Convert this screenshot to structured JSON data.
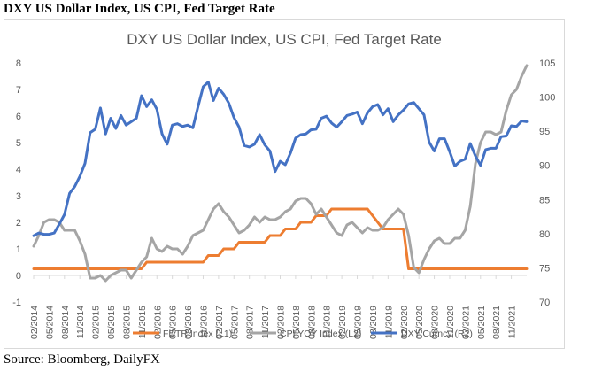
{
  "page": {
    "outer_title": "DXY US Dollar Index, US CPI, Fed Target Rate",
    "source": "Source: Bloomberg, DailyFX"
  },
  "chart_data": {
    "type": "line",
    "title": "DXY US Dollar Index, US CPI, Fed Target Rate",
    "x": [
      "02/2014",
      "03/2014",
      "04/2014",
      "05/2014",
      "06/2014",
      "07/2014",
      "08/2014",
      "09/2014",
      "10/2014",
      "11/2014",
      "12/2014",
      "01/2015",
      "02/2015",
      "03/2015",
      "04/2015",
      "05/2015",
      "06/2015",
      "07/2015",
      "08/2015",
      "09/2015",
      "10/2015",
      "11/2015",
      "12/2015",
      "01/2016",
      "02/2016",
      "03/2016",
      "04/2016",
      "05/2016",
      "06/2016",
      "07/2016",
      "08/2016",
      "09/2016",
      "10/2016",
      "11/2016",
      "12/2016",
      "01/2017",
      "02/2017",
      "03/2017",
      "04/2017",
      "05/2017",
      "06/2017",
      "07/2017",
      "08/2017",
      "09/2017",
      "10/2017",
      "11/2017",
      "12/2017",
      "01/2018",
      "02/2018",
      "03/2018",
      "04/2018",
      "05/2018",
      "06/2018",
      "07/2018",
      "08/2018",
      "09/2018",
      "10/2018",
      "11/2018",
      "12/2018",
      "01/2019",
      "02/2019",
      "03/2019",
      "04/2019",
      "05/2019",
      "06/2019",
      "07/2019",
      "08/2019",
      "09/2019",
      "10/2019",
      "11/2019",
      "12/2019",
      "01/2020",
      "02/2020",
      "03/2020",
      "04/2020",
      "05/2020",
      "06/2020",
      "07/2020",
      "08/2020",
      "09/2020",
      "10/2020",
      "11/2020",
      "12/2020",
      "01/2021",
      "02/2021",
      "03/2021",
      "04/2021",
      "05/2021",
      "06/2021",
      "07/2021",
      "08/2021",
      "09/2021",
      "10/2021",
      "11/2021",
      "12/2021",
      "01/2022",
      "02/2022"
    ],
    "x_tick_labels": [
      "02/2014",
      "05/2014",
      "08/2014",
      "11/2014",
      "02/2015",
      "05/2015",
      "08/2015",
      "11/2015",
      "02/2016",
      "05/2016",
      "08/2016",
      "11/2016",
      "02/2017",
      "05/2017",
      "08/2017",
      "11/2017",
      "02/2018",
      "05/2018",
      "08/2018",
      "11/2018",
      "02/2019",
      "05/2019",
      "08/2019",
      "11/2019",
      "02/2020",
      "05/2020",
      "08/2020",
      "11/2020",
      "02/2021",
      "05/2021",
      "08/2021",
      "11/2021"
    ],
    "y_left": {
      "min": -1,
      "max": 8,
      "ticks": [
        "-1",
        "0",
        "1",
        "2",
        "3",
        "4",
        "5",
        "6",
        "7",
        "8"
      ]
    },
    "y_right": {
      "min": 70,
      "max": 105,
      "ticks": [
        "70",
        "75",
        "80",
        "85",
        "90",
        "95",
        "100",
        "105"
      ]
    },
    "grid": false,
    "legend_position": "bottom",
    "series": [
      {
        "name": "FDTR Index  (L1)",
        "axis": "left",
        "color": "#ed7d31",
        "values": [
          0.25,
          0.25,
          0.25,
          0.25,
          0.25,
          0.25,
          0.25,
          0.25,
          0.25,
          0.25,
          0.25,
          0.25,
          0.25,
          0.25,
          0.25,
          0.25,
          0.25,
          0.25,
          0.25,
          0.25,
          0.25,
          0.25,
          0.5,
          0.5,
          0.5,
          0.5,
          0.5,
          0.5,
          0.5,
          0.5,
          0.5,
          0.5,
          0.5,
          0.5,
          0.75,
          0.75,
          0.75,
          1.0,
          1.0,
          1.0,
          1.25,
          1.25,
          1.25,
          1.25,
          1.25,
          1.25,
          1.5,
          1.5,
          1.5,
          1.75,
          1.75,
          1.75,
          2.0,
          2.0,
          2.0,
          2.25,
          2.25,
          2.25,
          2.5,
          2.5,
          2.5,
          2.5,
          2.5,
          2.5,
          2.5,
          2.5,
          2.25,
          2.0,
          1.75,
          1.75,
          1.75,
          1.75,
          1.75,
          0.25,
          0.25,
          0.25,
          0.25,
          0.25,
          0.25,
          0.25,
          0.25,
          0.25,
          0.25,
          0.25,
          0.25,
          0.25,
          0.25,
          0.25,
          0.25,
          0.25,
          0.25,
          0.25,
          0.25,
          0.25,
          0.25,
          0.25,
          0.25
        ]
      },
      {
        "name": "CPI YOY Index  (L2)",
        "axis": "left",
        "color": "#a5a5a5",
        "values": [
          1.1,
          1.5,
          2.0,
          2.1,
          2.1,
          2.0,
          1.7,
          1.7,
          1.7,
          1.3,
          0.8,
          -0.1,
          -0.1,
          0.0,
          -0.2,
          0.0,
          0.1,
          0.2,
          0.2,
          -0.1,
          0.2,
          0.5,
          0.7,
          1.4,
          1.0,
          0.9,
          1.1,
          1.0,
          1.0,
          0.8,
          1.1,
          1.5,
          1.6,
          1.7,
          2.1,
          2.5,
          2.7,
          2.4,
          2.2,
          1.9,
          1.6,
          1.7,
          1.9,
          2.2,
          2.0,
          2.2,
          2.1,
          2.1,
          2.2,
          2.4,
          2.5,
          2.8,
          2.9,
          2.9,
          2.7,
          2.3,
          2.5,
          2.2,
          1.9,
          1.6,
          1.5,
          1.9,
          2.0,
          1.8,
          1.6,
          1.8,
          1.7,
          1.7,
          1.8,
          2.1,
          2.3,
          2.5,
          2.3,
          1.5,
          0.3,
          0.1,
          0.6,
          1.0,
          1.3,
          1.4,
          1.2,
          1.2,
          1.4,
          1.4,
          1.7,
          2.6,
          4.2,
          5.0,
          5.4,
          5.4,
          5.3,
          5.4,
          6.2,
          6.8,
          7.0,
          7.5,
          7.9
        ]
      },
      {
        "name": "DXY Curncy  (R2)",
        "axis": "right",
        "color": "#4472c4",
        "values": [
          79.7,
          80.1,
          79.9,
          79.9,
          80.1,
          81.4,
          82.8,
          85.9,
          86.9,
          88.4,
          90.3,
          94.8,
          95.3,
          98.4,
          94.6,
          96.9,
          95.4,
          97.3,
          95.9,
          96.4,
          96.9,
          100.2,
          98.6,
          99.6,
          98.2,
          94.6,
          93.1,
          95.9,
          96.1,
          95.7,
          95.9,
          95.5,
          98.6,
          101.5,
          102.2,
          99.5,
          101.3,
          100.4,
          99.1,
          97.0,
          95.6,
          92.9,
          92.7,
          93.1,
          94.5,
          93.0,
          92.1,
          89.1,
          90.6,
          90.1,
          91.8,
          94.0,
          94.5,
          94.6,
          95.2,
          95.3,
          96.9,
          97.2,
          96.2,
          95.6,
          96.4,
          97.3,
          97.5,
          97.8,
          96.1,
          97.7,
          98.6,
          98.9,
          97.4,
          98.3,
          96.4,
          97.4,
          98.1,
          99.0,
          99.2,
          98.3,
          97.4,
          93.4,
          92.1,
          93.9,
          93.9,
          92.0,
          89.9,
          90.6,
          90.9,
          93.2,
          91.4,
          90.0,
          92.3,
          92.5,
          92.5,
          94.2,
          94.3,
          95.8,
          95.7,
          96.5,
          96.4
        ]
      }
    ]
  }
}
